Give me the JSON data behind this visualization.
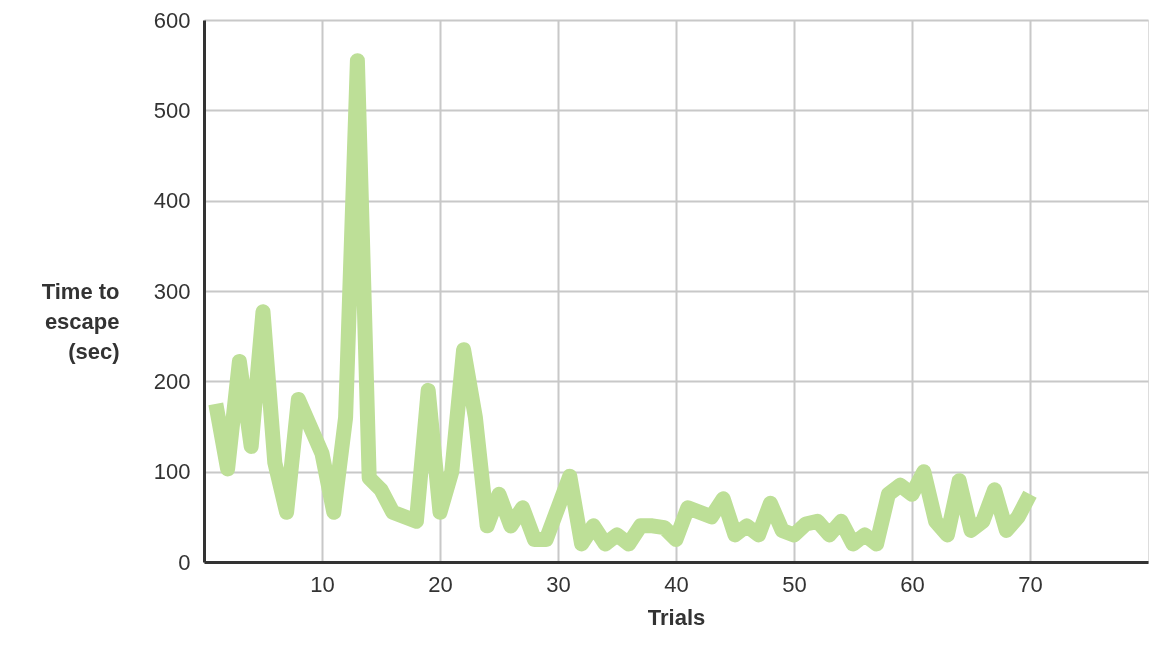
{
  "chart_data": {
    "type": "line",
    "xlabel": "Trials",
    "ylabel": "Time to\nescape\n(sec)",
    "x": [
      1,
      2,
      3,
      4,
      5,
      6,
      7,
      8,
      9,
      10,
      11,
      12,
      13,
      14,
      15,
      16,
      17,
      18,
      19,
      20,
      21,
      22,
      23,
      24,
      25,
      26,
      27,
      28,
      29,
      30,
      31,
      32,
      33,
      34,
      35,
      36,
      37,
      38,
      39,
      40,
      41,
      42,
      43,
      44,
      45,
      46,
      47,
      48,
      49,
      50,
      51,
      52,
      53,
      54,
      55,
      56,
      57,
      58,
      59,
      60,
      61,
      62,
      63,
      64,
      65,
      66,
      67,
      68,
      69,
      70
    ],
    "series": [
      {
        "color": "#bddf97",
        "values": [
          175,
          103,
          222,
          128,
          277,
          110,
          55,
          180,
          150,
          120,
          55,
          160,
          555,
          93,
          80,
          55,
          50,
          45,
          190,
          55,
          100,
          235,
          160,
          40,
          75,
          40,
          60,
          25,
          25,
          60,
          95,
          20,
          40,
          20,
          30,
          20,
          40,
          40,
          38,
          25,
          60,
          55,
          50,
          70,
          30,
          40,
          30,
          65,
          35,
          30,
          42,
          45,
          30,
          45,
          20,
          30,
          20,
          75,
          85,
          75,
          100,
          45,
          30,
          90,
          35,
          45,
          80,
          35,
          50,
          75
        ]
      }
    ],
    "xlim": [
      0,
      80
    ],
    "xticks": [
      10,
      20,
      30,
      40,
      50,
      60,
      70
    ],
    "ylim": [
      0,
      600
    ],
    "yticks": [
      0,
      100,
      200,
      300,
      400,
      500,
      600
    ],
    "grid": true,
    "marker": "none",
    "line_style": "solid"
  }
}
